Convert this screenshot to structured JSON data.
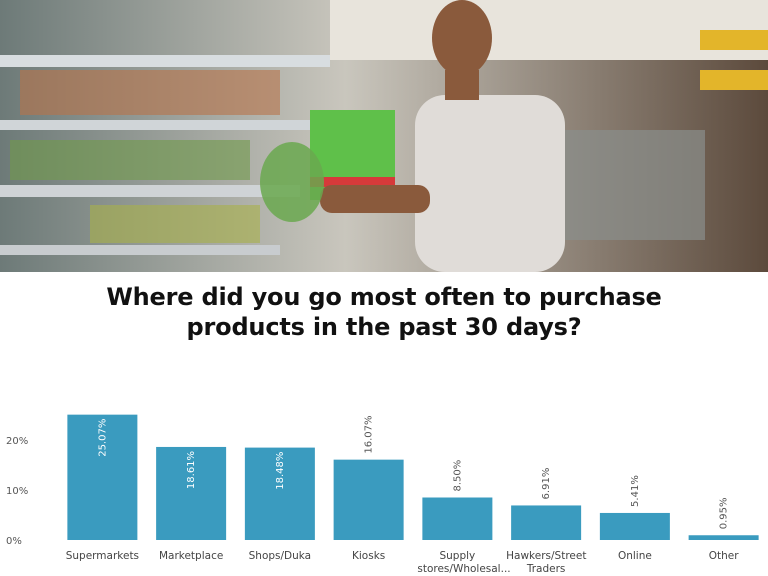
{
  "chart_data": {
    "type": "bar",
    "title": "Where did you go most often to purchase products in the past 30 days?",
    "categories": [
      "Supermarkets",
      "Marketplace",
      "Shops/Duka",
      "Kiosks",
      "Supply stores/Wholesal...",
      "Hawkers/Street Traders",
      "Online",
      "Other"
    ],
    "values": [
      25.07,
      18.61,
      18.48,
      16.07,
      8.5,
      6.91,
      5.41,
      0.95
    ],
    "value_labels": [
      "25.07%",
      "18.61%",
      "18.48%",
      "16.07%",
      "8.50%",
      "6.91%",
      "5.41%",
      "0.95%"
    ],
    "color": "#3a9bbf",
    "ylim": [
      0,
      27
    ],
    "yticks": [
      {
        "value": 0,
        "label": "0%"
      },
      {
        "value": 10,
        "label": "10%"
      },
      {
        "value": 20,
        "label": "20%"
      }
    ],
    "grid": false
  }
}
